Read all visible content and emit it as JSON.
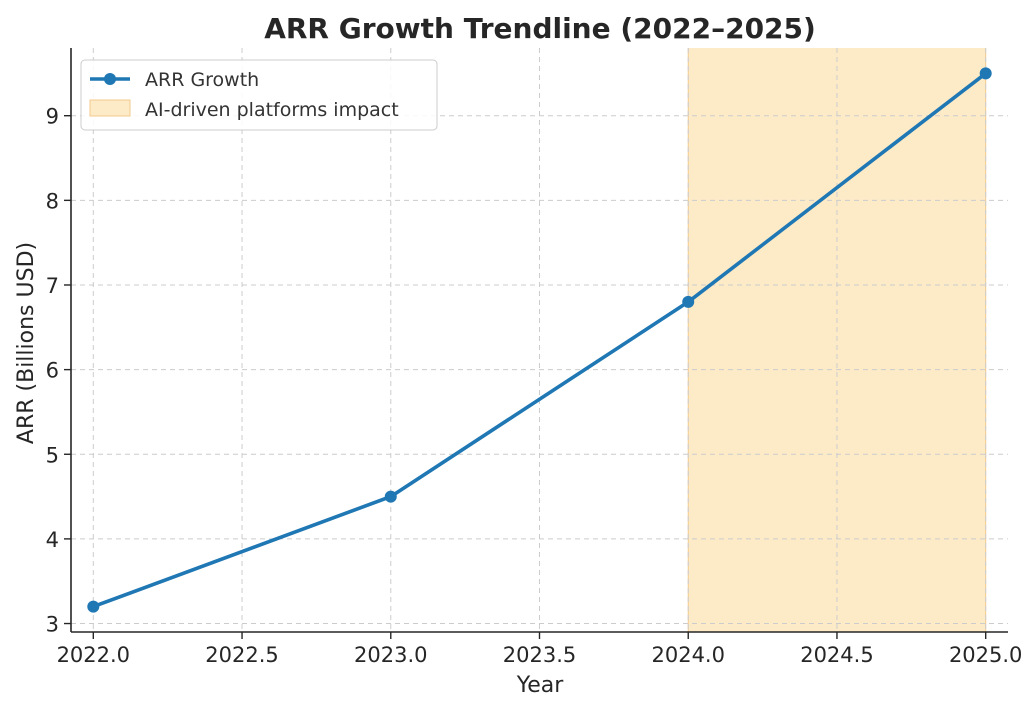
{
  "chart_data": {
    "type": "line",
    "title": "ARR Growth Trendline (2022–2025)",
    "xlabel": "Year",
    "ylabel": "ARR (Billions USD)",
    "xlim": [
      1921.925,
      2025.075
    ],
    "ylim": [
      2.9,
      9.8
    ],
    "x_ticks": [
      2022.0,
      2022.5,
      2023.0,
      2023.5,
      2024.0,
      2024.5,
      2025.0
    ],
    "x_tick_labels": [
      "2022.0",
      "2022.5",
      "2023.0",
      "2023.5",
      "2024.0",
      "2024.5",
      "2025.0"
    ],
    "y_ticks": [
      3,
      4,
      5,
      6,
      7,
      8,
      9
    ],
    "y_tick_labels": [
      "3",
      "4",
      "5",
      "6",
      "7",
      "8",
      "9"
    ],
    "grid": true,
    "legend_position": "top-left",
    "series": [
      {
        "name": "ARR Growth",
        "x": [
          2022,
          2023,
          2024,
          2025
        ],
        "values": [
          3.2,
          4.5,
          6.8,
          9.5
        ],
        "color": "#1f77b4",
        "marker": "circle"
      }
    ],
    "highlight_span": {
      "name": "AI-driven platforms impact",
      "x_start": 2024.0,
      "x_end": 2025.0,
      "color": "#fdebc8",
      "edge_color": "#f3c98b"
    }
  }
}
